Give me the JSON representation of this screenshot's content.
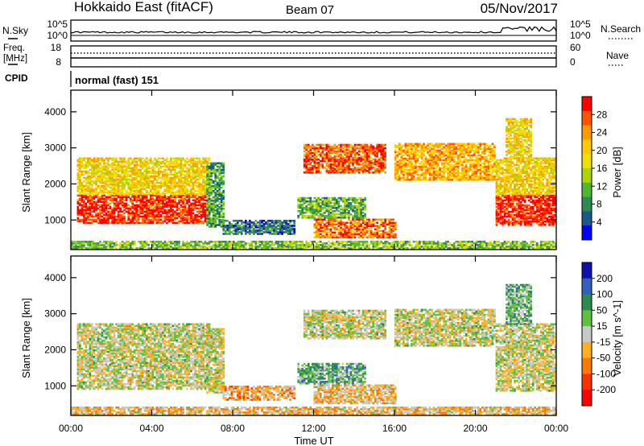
{
  "header": {
    "title": "Hokkaido East (fitACF)",
    "beam": "Beam 07",
    "date": "05/Nov/2017"
  },
  "sky_panel": {
    "left_label": "N.Sky",
    "left_ticks": [
      "10^5",
      "10^0"
    ],
    "right_ticks": [
      "10^5",
      "10^0"
    ],
    "right_label": "N.Search"
  },
  "freq_panel": {
    "left_label_line1": "Freq.",
    "left_label_line2": "[MHz]",
    "left_ticks": [
      "18",
      "8"
    ],
    "right_ticks": [
      "60",
      "0"
    ],
    "right_label": "Nave"
  },
  "cpid_panel": {
    "label": "CPID",
    "text": "normal (fast) 151"
  },
  "chart_data": [
    {
      "type": "heatmap",
      "name": "power",
      "ylabel": "Slant Range [km]",
      "yticks": [
        1000,
        2000,
        3000,
        4000
      ],
      "ylim": [
        180,
        4600
      ],
      "xlim": [
        0,
        24
      ],
      "colorbar_label": "Power [dB]",
      "colorbar_ticks": [
        "28",
        "24",
        "20",
        "16",
        "12",
        "8",
        "4"
      ],
      "colorbar_colors": [
        "#ff0000",
        "#ff5500",
        "#ff9900",
        "#ffc800",
        "#f0e000",
        "#a8d800",
        "#50b830",
        "#2e8a50",
        "#1a5a8a",
        "#0000ff"
      ],
      "echo_regions": [
        {
          "t0": 0.3,
          "t1": 6.8,
          "r0": 900,
          "r1": 1700,
          "lvl": 0.92
        },
        {
          "t0": 0.3,
          "t1": 6.8,
          "r0": 1700,
          "r1": 2700,
          "lvl": 0.6
        },
        {
          "t0": 6.7,
          "t1": 7.5,
          "r0": 800,
          "r1": 2600,
          "lvl": 0.3
        },
        {
          "t0": 7.5,
          "t1": 11.0,
          "r0": 600,
          "r1": 1000,
          "lvl": 0.2
        },
        {
          "t0": 11.5,
          "t1": 15.5,
          "r0": 2300,
          "r1": 3100,
          "lvl": 0.85
        },
        {
          "t0": 11.2,
          "t1": 14.5,
          "r0": 1050,
          "r1": 1600,
          "lvl": 0.35
        },
        {
          "t0": 12.0,
          "t1": 16.0,
          "r0": 500,
          "r1": 1000,
          "lvl": 0.8
        },
        {
          "t0": 16.0,
          "t1": 21.0,
          "r0": 2100,
          "r1": 3100,
          "lvl": 0.7
        },
        {
          "t0": 21.0,
          "t1": 24.0,
          "r0": 850,
          "r1": 1700,
          "lvl": 0.95
        },
        {
          "t0": 21.0,
          "t1": 24.0,
          "r0": 1700,
          "r1": 2700,
          "lvl": 0.6
        },
        {
          "t0": 21.5,
          "t1": 22.8,
          "r0": 2700,
          "r1": 3800,
          "lvl": 0.6
        },
        {
          "t0": 0.0,
          "t1": 24.0,
          "r0": 200,
          "r1": 420,
          "lvl": 0.4
        }
      ]
    },
    {
      "type": "heatmap",
      "name": "velocity",
      "ylabel": "Slant Range [km]",
      "xlabel": "Time UT",
      "yticks": [
        1000,
        2000,
        3000,
        4000
      ],
      "xticks": [
        "00:00",
        "04:00",
        "08:00",
        "12:00",
        "16:00",
        "20:00",
        "00:00"
      ],
      "ylim": [
        180,
        4600
      ],
      "xlim": [
        0,
        24
      ],
      "colorbar_label": "Velocity [m s^-1]",
      "colorbar_ticks": [
        "200",
        "100",
        "50",
        "15",
        "-15",
        "-50",
        "-100",
        "-200"
      ],
      "colorbar_colors": [
        "#1010b0",
        "#3060c0",
        "#2a8a50",
        "#60c040",
        "#c8c8c8",
        "#ffb020",
        "#ff7800",
        "#ff3000",
        "#ff0000"
      ],
      "echo_regions": [
        {
          "t0": 0.3,
          "t1": 6.8,
          "r0": 900,
          "r1": 1700,
          "lvl": 0.5
        },
        {
          "t0": 0.3,
          "t1": 6.8,
          "r0": 1700,
          "r1": 2700,
          "lvl": 0.5
        },
        {
          "t0": 6.7,
          "t1": 7.5,
          "r0": 800,
          "r1": 2600,
          "lvl": 0.5
        },
        {
          "t0": 7.5,
          "t1": 11.0,
          "r0": 600,
          "r1": 1000,
          "lvl": 0.35
        },
        {
          "t0": 11.5,
          "t1": 15.5,
          "r0": 2300,
          "r1": 3100,
          "lvl": 0.5
        },
        {
          "t0": 11.2,
          "t1": 14.5,
          "r0": 1050,
          "r1": 1600,
          "lvl": 0.65
        },
        {
          "t0": 12.0,
          "t1": 16.0,
          "r0": 500,
          "r1": 1000,
          "lvl": 0.4
        },
        {
          "t0": 16.0,
          "t1": 21.0,
          "r0": 2100,
          "r1": 3100,
          "lvl": 0.5
        },
        {
          "t0": 21.0,
          "t1": 24.0,
          "r0": 850,
          "r1": 1700,
          "lvl": 0.5
        },
        {
          "t0": 21.0,
          "t1": 24.0,
          "r0": 1700,
          "r1": 2700,
          "lvl": 0.5
        },
        {
          "t0": 21.5,
          "t1": 22.8,
          "r0": 2700,
          "r1": 3800,
          "lvl": 0.62
        },
        {
          "t0": 0.0,
          "t1": 24.0,
          "r0": 200,
          "r1": 420,
          "lvl": 0.4
        }
      ]
    }
  ]
}
